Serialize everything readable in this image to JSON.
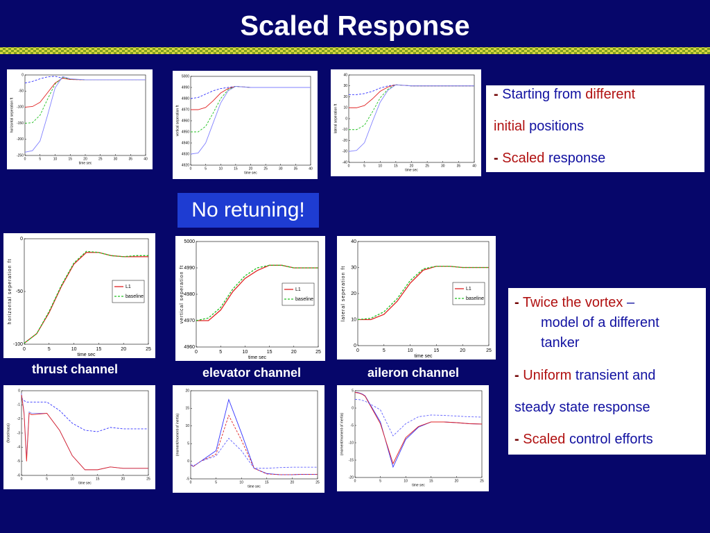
{
  "title": "Scaled Response",
  "callout": "No retuning!",
  "channel_labels": [
    "thrust channel",
    "elevator channel",
    "aileron channel"
  ],
  "box_1": [
    [
      "-",
      "Starting from",
      "different"
    ],
    [
      "initial",
      "positions"
    ],
    [
      "-",
      "Scaled",
      "response"
    ]
  ],
  "box_2": [
    [
      "-",
      "Twice the vortex",
      "–"
    ],
    [
      "model of a different"
    ],
    [
      "tanker"
    ],
    [
      "-",
      "Uniform",
      "transient and"
    ],
    [
      "steady state response"
    ],
    [
      "-",
      "Scaled",
      "control efforts"
    ]
  ],
  "chart_data": [
    {
      "type": "line",
      "xlabel": "time sec",
      "ylabel": "horizontal seperation ft",
      "x": [
        0,
        2.5,
        5,
        7.5,
        10,
        12.5,
        15,
        20,
        25,
        30,
        35,
        40
      ],
      "xlim": [
        0,
        40
      ],
      "xticks": [
        0,
        5,
        10,
        15,
        20,
        25,
        30,
        35,
        40
      ],
      "ylim": [
        -250,
        0
      ],
      "yticks": [
        -250,
        -200,
        -150,
        -100,
        -50,
        0
      ],
      "series": [
        {
          "color": "#3030ff",
          "dash": true,
          "values": [
            -25,
            -20,
            -12,
            -6,
            -4,
            -10,
            -14,
            -15,
            -15,
            -15,
            -15,
            -15
          ]
        },
        {
          "color": "#e02020",
          "dash": false,
          "values": [
            -100,
            -98,
            -85,
            -55,
            -25,
            -10,
            -14,
            -15,
            -15,
            -15,
            -15,
            -15
          ]
        },
        {
          "color": "#20c020",
          "dash": true,
          "values": [
            -150,
            -148,
            -125,
            -75,
            -28,
            -8,
            -13,
            -15,
            -15,
            -15,
            -15,
            -15
          ]
        },
        {
          "color": "#8080ff",
          "dash": false,
          "values": [
            -240,
            -235,
            -205,
            -125,
            -40,
            -5,
            -12,
            -15,
            -15,
            -15,
            -15,
            -15
          ]
        }
      ]
    },
    {
      "type": "line",
      "xlabel": "time sec",
      "ylabel": "vertical seperation ft",
      "x": [
        0,
        2.5,
        5,
        7.5,
        10,
        12.5,
        15,
        20,
        25,
        30,
        35,
        40
      ],
      "xlim": [
        0,
        40
      ],
      "xticks": [
        0,
        5,
        10,
        15,
        20,
        25,
        30,
        35,
        40
      ],
      "ylim": [
        4920,
        5000
      ],
      "yticks": [
        4920,
        4930,
        4940,
        4950,
        4960,
        4970,
        4980,
        4990,
        5000
      ],
      "series": [
        {
          "color": "#3030ff",
          "dash": true,
          "values": [
            4980,
            4981,
            4984,
            4987,
            4989,
            4990,
            4991,
            4990,
            4990,
            4990,
            4990,
            4990
          ]
        },
        {
          "color": "#e02020",
          "dash": false,
          "values": [
            4970,
            4970,
            4972,
            4978,
            4985,
            4989,
            4991,
            4990,
            4990,
            4990,
            4990,
            4990
          ]
        },
        {
          "color": "#20c020",
          "dash": true,
          "values": [
            4950,
            4950,
            4955,
            4967,
            4980,
            4988,
            4991,
            4990,
            4990,
            4990,
            4990,
            4990
          ]
        },
        {
          "color": "#8080ff",
          "dash": false,
          "values": [
            4930,
            4931,
            4940,
            4958,
            4976,
            4987,
            4991,
            4990,
            4990,
            4990,
            4990,
            4990
          ]
        }
      ]
    },
    {
      "type": "line",
      "xlabel": "time sec",
      "ylabel": "lateral seperation ft",
      "x": [
        0,
        2.5,
        5,
        7.5,
        10,
        12.5,
        15,
        20,
        25,
        30,
        35,
        40
      ],
      "xlim": [
        0,
        40
      ],
      "xticks": [
        0,
        5,
        10,
        15,
        20,
        25,
        30,
        35,
        40
      ],
      "ylim": [
        -40,
        40
      ],
      "yticks": [
        -40,
        -30,
        -20,
        -10,
        0,
        10,
        20,
        30,
        40
      ],
      "series": [
        {
          "color": "#3030ff",
          "dash": true,
          "values": [
            22,
            22,
            23,
            25,
            28,
            30,
            31,
            30,
            30,
            30,
            30,
            30
          ]
        },
        {
          "color": "#e02020",
          "dash": false,
          "values": [
            10,
            10,
            12,
            18,
            25,
            29,
            31,
            30,
            30,
            30,
            30,
            30
          ]
        },
        {
          "color": "#20c020",
          "dash": true,
          "values": [
            -10,
            -10,
            -6,
            6,
            19,
            27,
            31,
            30,
            30,
            30,
            30,
            30
          ]
        },
        {
          "color": "#8080ff",
          "dash": false,
          "values": [
            -30,
            -29,
            -22,
            -3,
            15,
            26,
            31,
            30,
            30,
            30,
            30,
            30
          ]
        }
      ]
    },
    {
      "type": "line",
      "xlabel": "time sec",
      "ylabel": "horizontal seperation ft",
      "legend": "right",
      "x": [
        0,
        2.5,
        5,
        7.5,
        10,
        12.5,
        15,
        17.5,
        20,
        22.5,
        25
      ],
      "xlim": [
        0,
        25
      ],
      "xticks": [
        0,
        5,
        10,
        15,
        20,
        25
      ],
      "ylim": [
        -100,
        0
      ],
      "yticks": [
        -100,
        -50,
        0
      ],
      "series": [
        {
          "name": "L1",
          "color": "#e02020",
          "dash": false,
          "values": [
            -99,
            -90,
            -70,
            -45,
            -24,
            -13,
            -13,
            -16,
            -17,
            -17,
            -17
          ]
        },
        {
          "name": "baseline",
          "color": "#20c020",
          "dash": true,
          "values": [
            -99,
            -90,
            -69,
            -44,
            -23,
            -12,
            -13,
            -16,
            -17,
            -16,
            -16
          ]
        }
      ]
    },
    {
      "type": "line",
      "xlabel": "time sec",
      "ylabel": "vertical seperation ft",
      "legend": "right",
      "x": [
        0,
        2.5,
        5,
        7.5,
        10,
        12.5,
        15,
        17.5,
        20,
        22.5,
        25
      ],
      "xlim": [
        0,
        25
      ],
      "xticks": [
        0,
        5,
        10,
        15,
        20,
        25
      ],
      "ylim": [
        4960,
        5000
      ],
      "yticks": [
        4960,
        4970,
        4980,
        4990,
        5000
      ],
      "series": [
        {
          "name": "L1",
          "color": "#e02020",
          "dash": false,
          "values": [
            4970,
            4970,
            4974,
            4981,
            4986,
            4989,
            4991,
            4991,
            4990,
            4990,
            4990
          ]
        },
        {
          "name": "baseline",
          "color": "#20c020",
          "dash": true,
          "values": [
            4970,
            4971,
            4975,
            4982,
            4987,
            4990,
            4991,
            4991,
            4990,
            4990,
            4990
          ]
        }
      ]
    },
    {
      "type": "line",
      "xlabel": "time sec",
      "ylabel": "lateral seperation ft",
      "legend": "right",
      "x": [
        0,
        2.5,
        5,
        7.5,
        10,
        12.5,
        15,
        17.5,
        20,
        22.5,
        25
      ],
      "xlim": [
        0,
        25
      ],
      "xticks": [
        0,
        5,
        10,
        15,
        20,
        25
      ],
      "ylim": [
        0,
        40
      ],
      "yticks": [
        0,
        10,
        20,
        30,
        40
      ],
      "series": [
        {
          "name": "L1",
          "color": "#e02020",
          "dash": false,
          "values": [
            10,
            10,
            12,
            17,
            24,
            29,
            30.5,
            30.5,
            30,
            30,
            30
          ]
        },
        {
          "name": "baseline",
          "color": "#20c020",
          "dash": true,
          "values": [
            10,
            10.5,
            13,
            18,
            25,
            29.5,
            30.5,
            30.5,
            30,
            30,
            30
          ]
        }
      ]
    },
    {
      "type": "line",
      "xlabel": "time sec",
      "ylabel": "(force/mass)",
      "x": [
        0,
        0.5,
        1,
        1.5,
        2,
        5,
        7.5,
        10,
        12.5,
        15,
        17.5,
        20,
        22.5,
        25
      ],
      "xlim": [
        0,
        25
      ],
      "xticks": [
        0,
        5,
        10,
        15,
        20,
        25
      ],
      "ylim": [
        -6,
        0
      ],
      "yticks": [
        -6,
        -5,
        -4,
        -3,
        -2,
        -1,
        0
      ],
      "series": [
        {
          "color": "#3030ff",
          "dash": true,
          "values": [
            -0.5,
            -0.7,
            -0.8,
            -0.8,
            -0.8,
            -0.8,
            -1.4,
            -2.3,
            -2.8,
            -2.9,
            -2.6,
            -2.7,
            -2.7,
            -2.7
          ]
        },
        {
          "color": "#8080ff",
          "dash": false,
          "values": [
            -0.2,
            -1.5,
            -4.8,
            -1.5,
            -1.6,
            -1.6,
            -2.8,
            -4.6,
            -5.6,
            -5.6,
            -5.4,
            -5.5,
            -5.5,
            -5.5
          ]
        },
        {
          "color": "#e02020",
          "dash": false,
          "values": [
            -0.3,
            -1.6,
            -5,
            -1.6,
            -1.7,
            -1.6,
            -2.8,
            -4.6,
            -5.6,
            -5.6,
            -5.4,
            -5.5,
            -5.5,
            -5.5
          ]
        }
      ]
    },
    {
      "type": "line",
      "xlabel": "time sec",
      "ylabel": "(moment/moment of inertia)",
      "x": [
        0,
        0.5,
        1,
        1.5,
        2,
        5,
        7.5,
        10,
        12.5,
        15,
        17.5,
        20,
        22.5,
        25
      ],
      "xlim": [
        0,
        25
      ],
      "xticks": [
        0,
        5,
        10,
        15,
        20,
        25
      ],
      "ylim": [
        -5,
        20
      ],
      "yticks": [
        -5,
        0,
        5,
        10,
        15,
        20
      ],
      "series": [
        {
          "color": "#3030ff",
          "dash": false,
          "values": [
            -1,
            -1.5,
            -1,
            -0.5,
            0,
            3,
            17.5,
            8,
            -2,
            -3.5,
            -3.8,
            -3.8,
            -3.7,
            -3.7
          ]
        },
        {
          "color": "#e02020",
          "dash": true,
          "values": [
            -1,
            -1.5,
            -1,
            -0.5,
            0,
            2,
            13,
            6,
            -2,
            -3.6,
            -3.8,
            -3.8,
            -3.7,
            -3.7
          ]
        },
        {
          "color": "#6060ff",
          "dash": true,
          "values": [
            -1,
            -1.2,
            -1,
            -0.5,
            0,
            1.5,
            6.5,
            3,
            -2,
            -2,
            -1.8,
            -1.7,
            -1.7,
            -1.7
          ]
        }
      ]
    },
    {
      "type": "line",
      "xlabel": "time sec",
      "ylabel": "(moment/moment of inertia)",
      "x": [
        0,
        0.5,
        1,
        1.5,
        2,
        5,
        7.5,
        10,
        12.5,
        15,
        17.5,
        20,
        22.5,
        25
      ],
      "xlim": [
        0,
        25
      ],
      "xticks": [
        0,
        5,
        10,
        15,
        20,
        25
      ],
      "ylim": [
        -20,
        5
      ],
      "yticks": [
        -20,
        -15,
        -10,
        -5,
        0,
        5
      ],
      "series": [
        {
          "color": "#3030ff",
          "dash": false,
          "values": [
            4.5,
            4.5,
            4.3,
            4,
            3.5,
            -4,
            -17,
            -9,
            -5.5,
            -4,
            -4,
            -4.2,
            -4.5,
            -4.6
          ]
        },
        {
          "color": "#e02020",
          "dash": false,
          "values": [
            4.5,
            4.4,
            4.2,
            3.9,
            3.4,
            -4.5,
            -16,
            -8.5,
            -5.3,
            -4,
            -4,
            -4.2,
            -4.5,
            -4.6
          ]
        },
        {
          "color": "#6060ff",
          "dash": true,
          "values": [
            2.5,
            2.5,
            2.4,
            2.2,
            2,
            -0.5,
            -8,
            -4.5,
            -2.5,
            -2,
            -2.1,
            -2.3,
            -2.5,
            -2.6
          ]
        }
      ]
    }
  ]
}
